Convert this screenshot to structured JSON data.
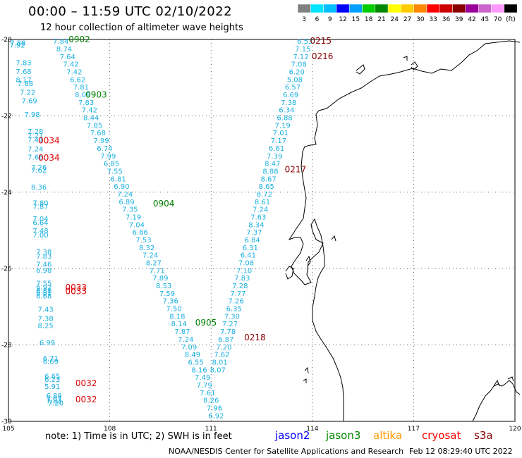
{
  "title": "00:00 – 11:59 UTC 02/10/2022",
  "subtitle": "12 hour collection of altimeter wave heights",
  "colorbar": {
    "colors": [
      "#808080",
      "#00e5ff",
      "#00bfff",
      "#0000ff",
      "#00a0ff",
      "#00cc00",
      "#008800",
      "#ffff00",
      "#ffcc00",
      "#ff8800",
      "#ff0000",
      "#cc0000",
      "#880000",
      "#990099",
      "#cc66cc",
      "#ff99ff",
      "#000000"
    ],
    "labels": [
      "3",
      "6",
      "9",
      "12",
      "15",
      "18",
      "21",
      "24",
      "27",
      "30",
      "33",
      "36",
      "39",
      "42",
      "45",
      "70",
      "(ft)"
    ]
  },
  "axes": {
    "lat_ticks": [
      {
        "value": -20,
        "label": "-20"
      },
      {
        "value": -22,
        "label": "-22"
      },
      {
        "value": -24,
        "label": "-24"
      },
      {
        "value": -26,
        "label": "-26"
      },
      {
        "value": -28,
        "label": "-28"
      },
      {
        "value": -30,
        "label": "-30"
      }
    ],
    "lon_ticks": [
      {
        "value": 105,
        "label": "105"
      },
      {
        "value": 108,
        "label": "108"
      },
      {
        "value": 111,
        "label": "111"
      },
      {
        "value": 114,
        "label": "114"
      },
      {
        "value": 117,
        "label": "117"
      },
      {
        "value": 120,
        "label": "120"
      }
    ],
    "lon_range": [
      105,
      120
    ],
    "lat_range": [
      -30,
      -20
    ]
  },
  "tracks": [
    {
      "name": "track-west",
      "values": [
        {
          "v": "7.88",
          "lon": 105.28,
          "lat": -20.08
        },
        {
          "v": "7.92",
          "lon": 105.26,
          "lat": -20.14
        },
        {
          "v": "7.83",
          "lon": 105.45,
          "lat": -20.6
        },
        {
          "v": "7.68",
          "lon": 105.45,
          "lat": -20.83
        },
        {
          "v": "8.17",
          "lon": 105.45,
          "lat": -21.05
        },
        {
          "v": "7.88",
          "lon": 105.5,
          "lat": -21.14
        },
        {
          "v": "7.22",
          "lon": 105.57,
          "lat": -21.37
        },
        {
          "v": "7.69",
          "lon": 105.62,
          "lat": -21.6
        },
        {
          "v": "7.98",
          "lon": 105.7,
          "lat": -21.96
        },
        {
          "v": "7.28",
          "lon": 105.8,
          "lat": -22.4
        },
        {
          "v": "7.21",
          "lon": 105.8,
          "lat": -22.51
        },
        {
          "v": "7.41",
          "lon": 105.8,
          "lat": -22.62
        },
        {
          "v": "7.24",
          "lon": 105.8,
          "lat": -22.86
        },
        {
          "v": "7.66",
          "lon": 105.8,
          "lat": -23.07
        },
        {
          "v": "7.26",
          "lon": 105.9,
          "lat": -23.34
        },
        {
          "v": "7.62",
          "lon": 105.9,
          "lat": -23.41
        },
        {
          "v": "8.36",
          "lon": 105.9,
          "lat": -23.86
        },
        {
          "v": "7.80",
          "lon": 105.95,
          "lat": -24.27
        },
        {
          "v": "7.87",
          "lon": 105.95,
          "lat": -24.36
        },
        {
          "v": "7.04",
          "lon": 105.95,
          "lat": -24.69
        },
        {
          "v": "6.64",
          "lon": 105.95,
          "lat": -24.79
        },
        {
          "v": "7.48",
          "lon": 105.95,
          "lat": -25.0
        },
        {
          "v": "7.00",
          "lon": 105.95,
          "lat": -25.11
        },
        {
          "v": "7.38",
          "lon": 106.05,
          "lat": -25.55
        },
        {
          "v": "7.83",
          "lon": 106.05,
          "lat": -25.66
        },
        {
          "v": "7.46",
          "lon": 106.05,
          "lat": -25.88
        },
        {
          "v": "6.98",
          "lon": 106.05,
          "lat": -26.03
        },
        {
          "v": "7.55",
          "lon": 106.05,
          "lat": -26.37
        },
        {
          "v": "6.92",
          "lon": 106.05,
          "lat": -26.48
        },
        {
          "v": "6.88",
          "lon": 106.05,
          "lat": -26.57
        },
        {
          "v": "6.81",
          "lon": 106.05,
          "lat": -26.62
        },
        {
          "v": "6.68",
          "lon": 106.05,
          "lat": -26.71
        },
        {
          "v": "7.43",
          "lon": 106.1,
          "lat": -27.06
        },
        {
          "v": "7.38",
          "lon": 106.1,
          "lat": -27.3
        },
        {
          "v": "8.25",
          "lon": 106.1,
          "lat": -27.48
        },
        {
          "v": "6.99",
          "lon": 106.15,
          "lat": -27.93
        },
        {
          "v": "6.71",
          "lon": 106.25,
          "lat": -28.34
        },
        {
          "v": "6.69",
          "lon": 106.25,
          "lat": -28.42
        },
        {
          "v": "6.65",
          "lon": 106.3,
          "lat": -28.81
        },
        {
          "v": "6.23",
          "lon": 106.3,
          "lat": -28.89
        },
        {
          "v": "5.91",
          "lon": 106.3,
          "lat": -29.08
        },
        {
          "v": "6.89",
          "lon": 106.35,
          "lat": -29.32
        },
        {
          "v": "7.07",
          "lon": 106.35,
          "lat": -29.4
        },
        {
          "v": "7.83",
          "lon": 106.35,
          "lat": -29.46
        },
        {
          "v": "7.20",
          "lon": 106.4,
          "lat": -29.51
        }
      ]
    },
    {
      "name": "track-central",
      "values": [
        {
          "v": "7.84",
          "lon": 106.55,
          "lat": -20.04
        },
        {
          "v": "8.74",
          "lon": 106.65,
          "lat": -20.24
        },
        {
          "v": "7.64",
          "lon": 106.75,
          "lat": -20.44
        },
        {
          "v": "7.42",
          "lon": 106.85,
          "lat": -20.64
        },
        {
          "v": "7.42",
          "lon": 106.95,
          "lat": -20.84
        },
        {
          "v": "6.62",
          "lon": 107.05,
          "lat": -21.04
        },
        {
          "v": "7.81",
          "lon": 107.15,
          "lat": -21.24
        },
        {
          "v": "8.09",
          "lon": 107.2,
          "lat": -21.44
        },
        {
          "v": "7.83",
          "lon": 107.3,
          "lat": -21.64
        },
        {
          "v": "7.42",
          "lon": 107.4,
          "lat": -21.84
        },
        {
          "v": "8.44",
          "lon": 107.45,
          "lat": -22.04
        },
        {
          "v": "7.85",
          "lon": 107.55,
          "lat": -22.24
        },
        {
          "v": "7.68",
          "lon": 107.65,
          "lat": -22.44
        },
        {
          "v": "7.99",
          "lon": 107.75,
          "lat": -22.64
        },
        {
          "v": "6.74",
          "lon": 107.85,
          "lat": -22.84
        },
        {
          "v": "7.99",
          "lon": 107.95,
          "lat": -23.04
        },
        {
          "v": "6.85",
          "lon": 108.05,
          "lat": -23.24
        },
        {
          "v": "7.55",
          "lon": 108.15,
          "lat": -23.44
        },
        {
          "v": "6.81",
          "lon": 108.25,
          "lat": -23.64
        },
        {
          "v": "6.90",
          "lon": 108.35,
          "lat": -23.84
        },
        {
          "v": "7.24",
          "lon": 108.45,
          "lat": -24.04
        },
        {
          "v": "6.89",
          "lon": 108.5,
          "lat": -24.24
        },
        {
          "v": "7.35",
          "lon": 108.6,
          "lat": -24.44
        },
        {
          "v": "7.19",
          "lon": 108.7,
          "lat": -24.64
        },
        {
          "v": "7.04",
          "lon": 108.8,
          "lat": -24.84
        },
        {
          "v": "6.66",
          "lon": 108.9,
          "lat": -25.04
        },
        {
          "v": "7.53",
          "lon": 109.0,
          "lat": -25.24
        },
        {
          "v": "8.32",
          "lon": 109.1,
          "lat": -25.44
        },
        {
          "v": "7.24",
          "lon": 109.2,
          "lat": -25.64
        },
        {
          "v": "8.27",
          "lon": 109.3,
          "lat": -25.84
        },
        {
          "v": "7.71",
          "lon": 109.4,
          "lat": -26.04
        },
        {
          "v": "7.89",
          "lon": 109.5,
          "lat": -26.24
        },
        {
          "v": "8.53",
          "lon": 109.6,
          "lat": -26.44
        },
        {
          "v": "7.59",
          "lon": 109.7,
          "lat": -26.64
        },
        {
          "v": "7.36",
          "lon": 109.8,
          "lat": -26.84
        },
        {
          "v": "7.50",
          "lon": 109.9,
          "lat": -27.04
        },
        {
          "v": "8.18",
          "lon": 110.0,
          "lat": -27.24
        },
        {
          "v": "8.14",
          "lon": 110.05,
          "lat": -27.44
        },
        {
          "v": "7.87",
          "lon": 110.15,
          "lat": -27.64
        },
        {
          "v": "7.24",
          "lon": 110.25,
          "lat": -27.84
        },
        {
          "v": "7.09",
          "lon": 110.35,
          "lat": -28.04
        },
        {
          "v": "8.49",
          "lon": 110.45,
          "lat": -28.24
        },
        {
          "v": "6.55",
          "lon": 110.55,
          "lat": -28.44
        },
        {
          "v": "8.16",
          "lon": 110.65,
          "lat": -28.64
        },
        {
          "v": "7.49",
          "lon": 110.75,
          "lat": -28.84
        },
        {
          "v": "7.79",
          "lon": 110.8,
          "lat": -29.04
        },
        {
          "v": "7.61",
          "lon": 110.9,
          "lat": -29.24
        },
        {
          "v": "8.26",
          "lon": 111.0,
          "lat": -29.44
        },
        {
          "v": "7.96",
          "lon": 111.1,
          "lat": -29.64
        },
        {
          "v": "6.92",
          "lon": 111.15,
          "lat": -29.84
        }
      ]
    },
    {
      "name": "track-east",
      "values": [
        {
          "v": "6.53",
          "lon": 113.78,
          "lat": -20.04
        },
        {
          "v": "7.15",
          "lon": 113.72,
          "lat": -20.24
        },
        {
          "v": "7.12",
          "lon": 113.66,
          "lat": -20.44
        },
        {
          "v": "7.08",
          "lon": 113.6,
          "lat": -20.64
        },
        {
          "v": "6.20",
          "lon": 113.54,
          "lat": -20.84
        },
        {
          "v": "5.08",
          "lon": 113.48,
          "lat": -21.04
        },
        {
          "v": "6.57",
          "lon": 113.42,
          "lat": -21.24
        },
        {
          "v": "6.69",
          "lon": 113.36,
          "lat": -21.44
        },
        {
          "v": "7.38",
          "lon": 113.3,
          "lat": -21.64
        },
        {
          "v": "6.34",
          "lon": 113.24,
          "lat": -21.84
        },
        {
          "v": "6.88",
          "lon": 113.18,
          "lat": -22.04
        },
        {
          "v": "7.19",
          "lon": 113.12,
          "lat": -22.24
        },
        {
          "v": "7.01",
          "lon": 113.06,
          "lat": -22.44
        },
        {
          "v": "7.17",
          "lon": 113.0,
          "lat": -22.64
        },
        {
          "v": "6.61",
          "lon": 112.94,
          "lat": -22.84
        },
        {
          "v": "7.39",
          "lon": 112.88,
          "lat": -23.04
        },
        {
          "v": "8.47",
          "lon": 112.82,
          "lat": -23.24
        },
        {
          "v": "8.88",
          "lon": 112.76,
          "lat": -23.44
        },
        {
          "v": "8.67",
          "lon": 112.7,
          "lat": -23.64
        },
        {
          "v": "8.65",
          "lon": 112.64,
          "lat": -23.84
        },
        {
          "v": "8.72",
          "lon": 112.58,
          "lat": -24.04
        },
        {
          "v": "8.61",
          "lon": 112.52,
          "lat": -24.24
        },
        {
          "v": "7.24",
          "lon": 112.46,
          "lat": -24.44
        },
        {
          "v": "7.63",
          "lon": 112.4,
          "lat": -24.64
        },
        {
          "v": "8.34",
          "lon": 112.34,
          "lat": -24.84
        },
        {
          "v": "7.37",
          "lon": 112.28,
          "lat": -25.04
        },
        {
          "v": "6.84",
          "lon": 112.22,
          "lat": -25.24
        },
        {
          "v": "6.31",
          "lon": 112.16,
          "lat": -25.44
        },
        {
          "v": "6.41",
          "lon": 112.1,
          "lat": -25.64
        },
        {
          "v": "7.08",
          "lon": 112.04,
          "lat": -25.84
        },
        {
          "v": "7.10",
          "lon": 111.98,
          "lat": -26.04
        },
        {
          "v": "7.83",
          "lon": 111.92,
          "lat": -26.24
        },
        {
          "v": "7.28",
          "lon": 111.86,
          "lat": -26.44
        },
        {
          "v": "7.77",
          "lon": 111.8,
          "lat": -26.64
        },
        {
          "v": "7.26",
          "lon": 111.74,
          "lat": -26.84
        },
        {
          "v": "6.35",
          "lon": 111.68,
          "lat": -27.04
        },
        {
          "v": "7.30",
          "lon": 111.62,
          "lat": -27.24
        },
        {
          "v": "7.27",
          "lon": 111.56,
          "lat": -27.44
        },
        {
          "v": "7.78",
          "lon": 111.5,
          "lat": -27.64
        },
        {
          "v": "6.87",
          "lon": 111.44,
          "lat": -27.84
        },
        {
          "v": "7.20",
          "lon": 111.38,
          "lat": -28.04
        },
        {
          "v": "7.62",
          "lon": 111.32,
          "lat": -28.24
        },
        {
          "v": "8.01",
          "lon": 111.26,
          "lat": -28.44
        },
        {
          "v": "8.07",
          "lon": 111.2,
          "lat": -28.64
        }
      ]
    }
  ],
  "pass_labels": [
    {
      "text": "0902",
      "color": "#008000",
      "lon": 107.1,
      "lat": -20.0
    },
    {
      "text": "0903",
      "color": "#008000",
      "lon": 107.6,
      "lat": -21.45
    },
    {
      "text": "0034",
      "color": "#dd0000",
      "lon": 106.2,
      "lat": -22.65
    },
    {
      "text": "0034",
      "color": "#dd0000",
      "lon": 106.2,
      "lat": -23.1
    },
    {
      "text": "0904",
      "color": "#008000",
      "lon": 109.6,
      "lat": -24.3
    },
    {
      "text": "0033",
      "color": "#dd0000",
      "lon": 107.0,
      "lat": -26.49
    },
    {
      "text": "0033",
      "color": "#dd0000",
      "lon": 107.0,
      "lat": -26.6
    },
    {
      "text": "0905",
      "color": "#008000",
      "lon": 110.85,
      "lat": -27.42
    },
    {
      "text": "0032",
      "color": "#dd0000",
      "lon": 107.3,
      "lat": -29.0
    },
    {
      "text": "0032",
      "color": "#dd0000",
      "lon": 107.3,
      "lat": -29.43
    },
    {
      "text": "0215",
      "color": "#880000",
      "lon": 114.25,
      "lat": -20.04
    },
    {
      "text": "0216",
      "color": "#880000",
      "lon": 114.3,
      "lat": -20.44
    },
    {
      "text": "0217",
      "color": "#880000",
      "lon": 113.5,
      "lat": -23.4
    },
    {
      "text": "0218",
      "color": "#880000",
      "lon": 112.3,
      "lat": -27.8
    }
  ],
  "note": "note:  1) Time is in UTC;  2) SWH is in feet",
  "legend": {
    "jason2": "jason2",
    "jason3": "jason3",
    "altika": "altika",
    "cryosat": "cryosat",
    "s3a": "s3a"
  },
  "credit": "NOAA/NESDIS Center for Satellite Applications and Research",
  "timestamp": "Feb 12 08:29:40 UTC 2022"
}
